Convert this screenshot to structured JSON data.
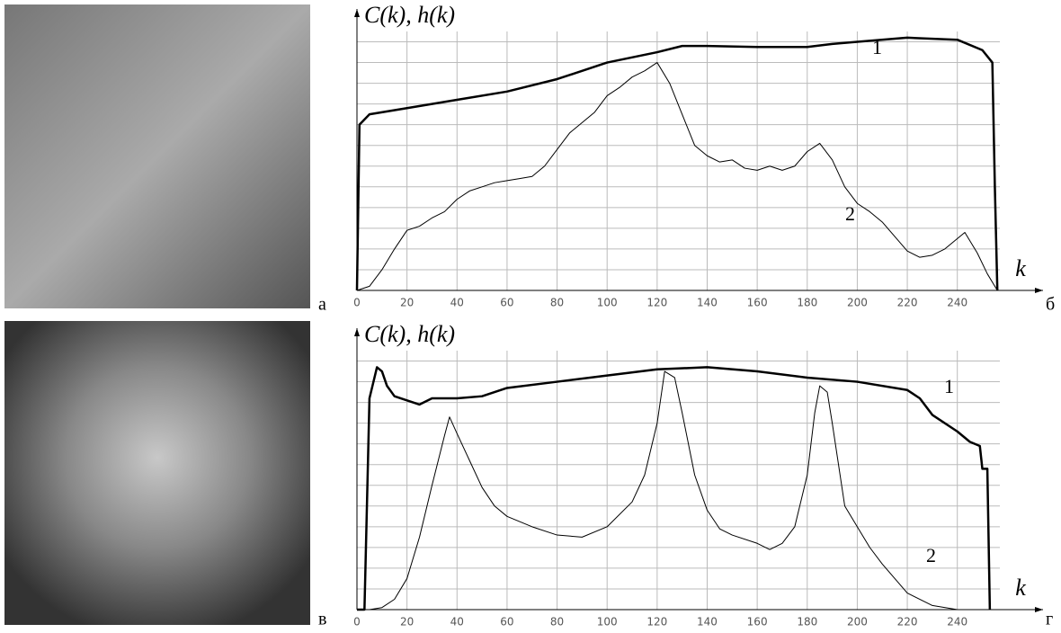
{
  "panel_labels": [
    "а",
    "б",
    "в",
    "г"
  ],
  "chart_data": [
    {
      "type": "line",
      "title": "C(k), h(k)",
      "x_label": "k",
      "xlim": [
        0,
        257
      ],
      "ylim": [
        0,
        12.5
      ],
      "xticks": [
        0,
        20,
        40,
        60,
        80,
        100,
        120,
        140,
        160,
        180,
        200,
        220,
        240
      ],
      "ygrid": [
        0,
        1,
        2,
        3,
        4,
        5,
        6,
        7,
        8,
        9,
        10,
        11,
        12
      ],
      "grid": true,
      "series": [
        {
          "name": "1",
          "color": "#000000",
          "line_width": 2.5,
          "x": [
            0,
            1,
            5,
            20,
            40,
            60,
            80,
            100,
            120,
            130,
            140,
            160,
            180,
            190,
            200,
            220,
            240,
            250,
            254,
            255,
            256
          ],
          "values": [
            0,
            8.0,
            8.5,
            8.8,
            9.2,
            9.6,
            10.2,
            11.0,
            11.5,
            11.8,
            11.8,
            11.75,
            11.75,
            11.9,
            12.0,
            12.2,
            12.1,
            11.6,
            11.0,
            5.0,
            0
          ]
        },
        {
          "name": "2",
          "color": "#000000",
          "line_width": 1,
          "x": [
            0,
            5,
            10,
            15,
            20,
            25,
            30,
            35,
            40,
            45,
            50,
            55,
            60,
            65,
            70,
            75,
            80,
            85,
            90,
            95,
            100,
            105,
            110,
            115,
            120,
            125,
            130,
            135,
            140,
            145,
            150,
            155,
            160,
            165,
            170,
            175,
            180,
            185,
            190,
            195,
            200,
            205,
            210,
            215,
            220,
            225,
            230,
            235,
            240,
            243,
            248,
            252,
            256
          ],
          "values": [
            0,
            0.2,
            1.0,
            2.0,
            2.9,
            3.1,
            3.5,
            3.8,
            4.4,
            4.8,
            5.0,
            5.2,
            5.3,
            5.4,
            5.5,
            6.0,
            6.8,
            7.6,
            8.1,
            8.6,
            9.4,
            9.8,
            10.3,
            10.6,
            11.0,
            10.0,
            8.5,
            7.0,
            6.5,
            6.2,
            6.3,
            5.9,
            5.8,
            6.0,
            5.8,
            6.0,
            6.7,
            7.1,
            6.3,
            5.0,
            4.2,
            3.8,
            3.3,
            2.6,
            1.9,
            1.6,
            1.7,
            2.0,
            2.5,
            2.8,
            1.8,
            0.8,
            0
          ]
        }
      ]
    },
    {
      "type": "line",
      "title": "C(k), h(k)",
      "x_label": "k",
      "xlim": [
        0,
        257
      ],
      "ylim": [
        0,
        12.5
      ],
      "xticks": [
        0,
        20,
        40,
        60,
        80,
        100,
        120,
        140,
        160,
        180,
        200,
        220,
        240
      ],
      "ygrid": [
        0,
        1,
        2,
        3,
        4,
        5,
        6,
        7,
        8,
        9,
        10,
        11,
        12
      ],
      "grid": true,
      "series": [
        {
          "name": "1",
          "color": "#000000",
          "line_width": 2.5,
          "x": [
            0,
            3,
            5,
            8,
            10,
            12,
            15,
            20,
            25,
            30,
            40,
            50,
            60,
            80,
            100,
            120,
            140,
            160,
            180,
            200,
            220,
            225,
            230,
            240,
            245,
            249,
            250,
            252,
            253
          ],
          "values": [
            0,
            0,
            10.2,
            11.7,
            11.5,
            10.8,
            10.3,
            10.1,
            9.9,
            10.2,
            10.2,
            10.3,
            10.7,
            11.0,
            11.3,
            11.6,
            11.7,
            11.5,
            11.2,
            11.0,
            10.6,
            10.2,
            9.4,
            8.6,
            8.1,
            7.9,
            6.8,
            6.8,
            0
          ]
        },
        {
          "name": "2",
          "color": "#000000",
          "line_width": 1,
          "x": [
            0,
            5,
            10,
            15,
            20,
            25,
            30,
            35,
            37,
            40,
            45,
            50,
            55,
            60,
            70,
            80,
            90,
            100,
            110,
            115,
            120,
            123,
            127,
            130,
            135,
            140,
            145,
            150,
            160,
            165,
            170,
            175,
            180,
            183,
            185,
            188,
            190,
            195,
            200,
            205,
            210,
            215,
            220,
            230,
            240,
            256
          ],
          "values": [
            0,
            0,
            0.1,
            0.5,
            1.5,
            3.5,
            6.0,
            8.4,
            9.3,
            8.5,
            7.2,
            5.9,
            5.0,
            4.5,
            4.0,
            3.6,
            3.5,
            4.0,
            5.2,
            6.5,
            9.0,
            11.5,
            11.2,
            9.5,
            6.5,
            4.8,
            3.9,
            3.6,
            3.2,
            2.9,
            3.2,
            4.0,
            6.5,
            9.5,
            10.8,
            10.5,
            9.0,
            5.0,
            4.0,
            3.0,
            2.2,
            1.5,
            0.8,
            0.2,
            0,
            0
          ]
        }
      ]
    }
  ]
}
